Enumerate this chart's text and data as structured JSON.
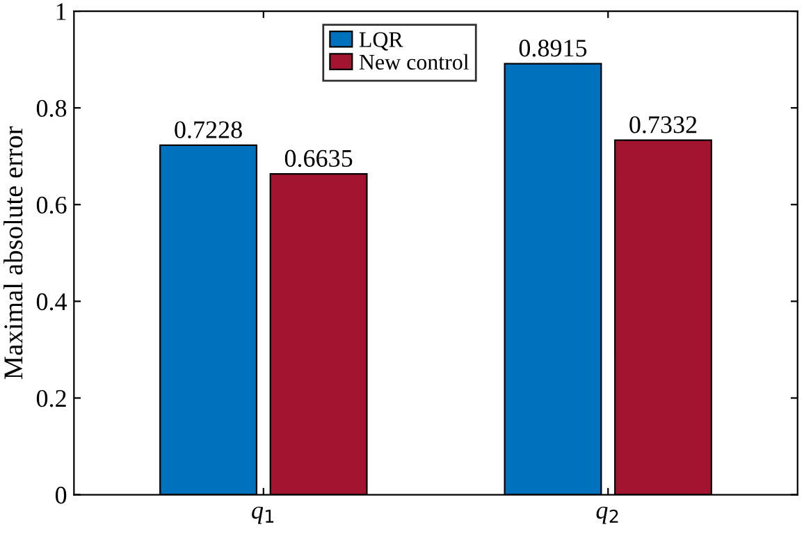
{
  "chart_data": {
    "type": "bar",
    "ylabel": "Maximal absolute error",
    "categories": [
      "q$_{1}$",
      "q$_{2}$"
    ],
    "series": [
      {
        "name": "LQR",
        "color": "#0072bd",
        "values": [
          0.7228,
          0.8915
        ]
      },
      {
        "name": "New control",
        "color": "#a2142f",
        "values": [
          0.6635,
          0.7332
        ]
      }
    ],
    "ylim": [
      0,
      1
    ],
    "yticks": [
      0,
      0.2,
      0.4,
      0.6,
      0.8,
      1
    ],
    "data_labels": true,
    "legend": "top",
    "grid": false
  }
}
